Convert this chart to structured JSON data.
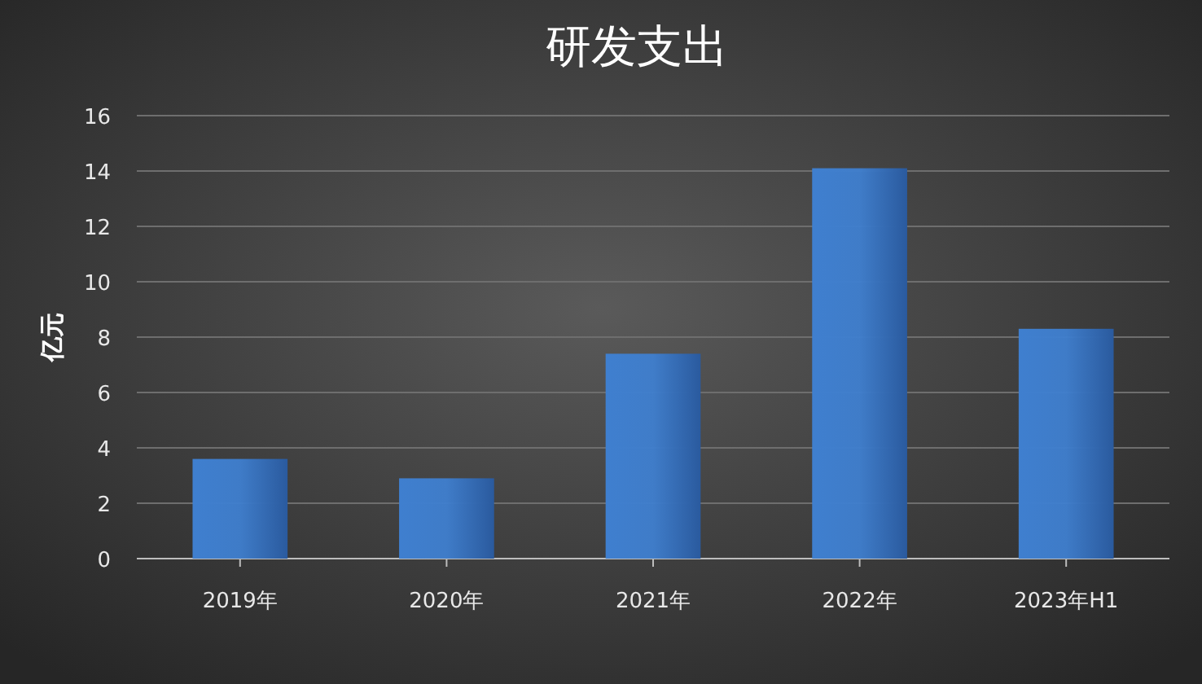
{
  "chart_data": {
    "type": "bar",
    "title": "研发支出",
    "ylabel": "亿元",
    "categories": [
      "2019年",
      "2020年",
      "2021年",
      "2022年",
      "2023年H1"
    ],
    "values": [
      3.6,
      2.9,
      7.4,
      14.1,
      8.3
    ],
    "color": "#3f7fcf",
    "ylim": [
      0,
      16
    ],
    "yticks": [
      0,
      2,
      4,
      6,
      8,
      10,
      12,
      14,
      16
    ],
    "grid": "y"
  }
}
